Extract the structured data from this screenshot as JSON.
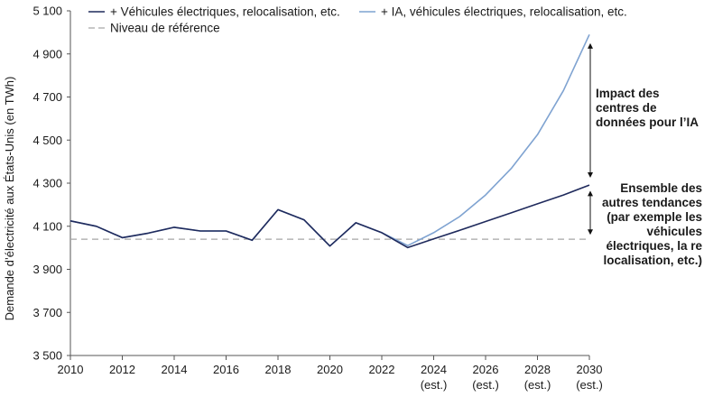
{
  "chart_data": {
    "type": "line",
    "title": "",
    "xlabel": "",
    "ylabel": "Demande d’électricité aux États-Unis (en TWh)",
    "ylim": [
      3500,
      5100
    ],
    "yticks": [
      3500,
      3700,
      3900,
      4100,
      4300,
      4500,
      4700,
      4900,
      5100
    ],
    "ytick_labels": [
      "3 500",
      "3 700",
      "3 900",
      "4 100",
      "4 300",
      "4 500",
      "4 700",
      "4 900",
      "5 100"
    ],
    "xlim": [
      2010,
      2030
    ],
    "xticks": [
      {
        "value": 2010,
        "label": "2010",
        "sub": ""
      },
      {
        "value": 2012,
        "label": "2012",
        "sub": ""
      },
      {
        "value": 2014,
        "label": "2014",
        "sub": ""
      },
      {
        "value": 2016,
        "label": "2016",
        "sub": ""
      },
      {
        "value": 2018,
        "label": "2018",
        "sub": ""
      },
      {
        "value": 2020,
        "label": "2020",
        "sub": ""
      },
      {
        "value": 2022,
        "label": "2022",
        "sub": ""
      },
      {
        "value": 2024,
        "label": "2024",
        "sub": "(est.)"
      },
      {
        "value": 2026,
        "label": "2026",
        "sub": "(est.)"
      },
      {
        "value": 2028,
        "label": "2028",
        "sub": "(est.)"
      },
      {
        "value": 2030,
        "label": "2030",
        "sub": "(est.)"
      }
    ],
    "grid": false,
    "legend_position": "top",
    "series": [
      {
        "name": "+ Véhicules électriques, relocalisation, etc.",
        "color": "#1f2a5c",
        "style": "solid",
        "x": [
          2010,
          2011,
          2012,
          2013,
          2014,
          2015,
          2016,
          2017,
          2018,
          2019,
          2020,
          2021,
          2022,
          2023,
          2024,
          2025,
          2026,
          2027,
          2028,
          2029,
          2030
        ],
        "values": [
          4125,
          4100,
          4047,
          4068,
          4095,
          4078,
          4078,
          4035,
          4177,
          4130,
          4008,
          4116,
          4070,
          4001,
          4041,
          4081,
          4122,
          4163,
          4204,
          4245,
          4291
        ]
      },
      {
        "name": "+ IA, véhicules électriques, relocalisation, etc.",
        "color": "#7fa3d1",
        "style": "solid",
        "x": [
          2010,
          2011,
          2012,
          2013,
          2014,
          2015,
          2016,
          2017,
          2018,
          2019,
          2020,
          2021,
          2022,
          2023,
          2024,
          2025,
          2026,
          2027,
          2028,
          2029,
          2030
        ],
        "values": [
          4125,
          4100,
          4047,
          4068,
          4095,
          4078,
          4078,
          4035,
          4177,
          4130,
          4008,
          4116,
          4070,
          4010,
          4070,
          4145,
          4245,
          4370,
          4525,
          4730,
          4990
        ]
      },
      {
        "name": "Niveau de référence",
        "color": "#a6a6a6",
        "style": "dashed",
        "x": [
          2010,
          2030
        ],
        "values": [
          4040,
          4040
        ]
      }
    ],
    "annotations": [
      {
        "text": "Impact des centres de données pour l’IA",
        "from": 4290,
        "to": 4990,
        "at_x": 2030
      },
      {
        "text": "Ensemble des autres tendances (par exemple les véhicules électriques, la re localisation, etc.)",
        "from": 4040,
        "to": 4290,
        "at_x": 2030
      }
    ]
  },
  "annotations_text": {
    "ai_lines": [
      "Impact des",
      "centres de",
      "données pour l’IA"
    ],
    "other_lines": [
      "Ensemble des",
      "autres tendances",
      "(par exemple les",
      "véhicules",
      "électriques, la re",
      "localisation, etc.)"
    ]
  }
}
